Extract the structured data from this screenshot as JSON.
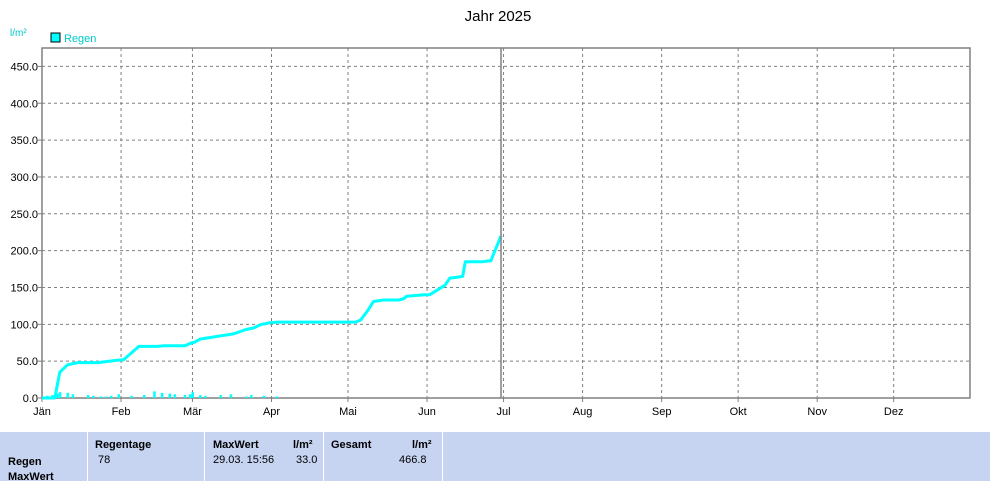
{
  "chart_data": {
    "type": "line",
    "title": "Jahr 2025",
    "ylabel": "l/m²",
    "legend": {
      "label": "Regen",
      "placement": "top-left"
    },
    "months": [
      "Jän",
      "Feb",
      "Mär",
      "Apr",
      "Mai",
      "Jun",
      "Jul",
      "Aug",
      "Sep",
      "Okt",
      "Nov",
      "Dez"
    ],
    "ylim": [
      0,
      475
    ],
    "yticks": [
      "0.0",
      "50.0",
      "100.0",
      "150.0",
      "200.0",
      "250.0",
      "300.0",
      "350.0",
      "400.0",
      "450.0"
    ],
    "grid": true,
    "series_color": "#00ffff",
    "cumulative": {
      "name": "Regen",
      "day": [
        0,
        5,
        7,
        10,
        14,
        19,
        22,
        29,
        32,
        38,
        45,
        48,
        56,
        58,
        60,
        62,
        75,
        80,
        83,
        86,
        88,
        89,
        90,
        92,
        123,
        125,
        128,
        130,
        134,
        140,
        142,
        143,
        150,
        152,
        158,
        160,
        161,
        165,
        166,
        173,
        175,
        176,
        180
      ],
      "value": [
        0,
        0,
        35,
        45,
        48,
        48,
        48,
        51,
        52,
        70,
        70,
        71,
        71,
        74,
        76,
        80,
        87,
        93,
        95,
        100,
        101,
        102,
        102,
        103,
        103,
        106,
        120,
        131,
        133,
        133,
        135,
        138,
        140,
        140,
        153,
        163,
        163,
        165,
        185,
        185,
        186,
        186,
        220
      ]
    },
    "daily_bars": {
      "day": [
        2,
        4,
        6,
        7,
        10,
        12,
        18,
        20,
        23,
        25,
        27,
        30,
        35,
        40,
        44,
        47,
        50,
        52,
        56,
        58,
        59,
        62,
        64,
        70,
        74,
        80,
        82,
        87,
        92
      ],
      "value": [
        3,
        4,
        6,
        8,
        7,
        5,
        4,
        3,
        2,
        2,
        3,
        5,
        3,
        4,
        9,
        7,
        6,
        5,
        4,
        5,
        8,
        4,
        3,
        4,
        5,
        2,
        4,
        3,
        2
      ]
    }
  },
  "summary": {
    "row_labels": [
      "Regen",
      "MaxWert"
    ],
    "regentage": {
      "header": "Regentage",
      "value": "78"
    },
    "maxwert": {
      "header": "MaxWert",
      "unit": "l/m²",
      "date": "29.03.  15:56",
      "value": "33.0"
    },
    "gesamt": {
      "header": "Gesamt",
      "unit": "l/m²",
      "value": "466.8"
    }
  }
}
